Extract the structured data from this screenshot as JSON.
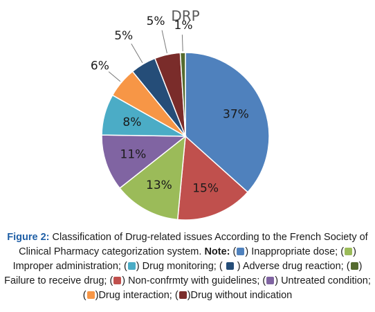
{
  "chart_data": {
    "type": "pie",
    "title": "DRP",
    "categories": [
      "Inappropriate dose",
      "Non-confrmty with guidelines",
      "Improper administration",
      "Untreated condition",
      "Drug monitoring",
      "Drug interaction",
      "Adverse drug reaction",
      "Drug without indication",
      "Failure to receive drug"
    ],
    "values": [
      37,
      15,
      13,
      11,
      8,
      6,
      5,
      5,
      1
    ],
    "labels": [
      "37%",
      "15%",
      "13%",
      "11%",
      "8%",
      "6%",
      "5%",
      "5%",
      "1%"
    ],
    "colors": [
      "#4f81bd",
      "#c0504d",
      "#9bbb59",
      "#8064a2",
      "#4bacc6",
      "#f79646",
      "#254d78",
      "#7a2c2a",
      "#556b2f"
    ]
  },
  "caption": {
    "figure_label": "Figure 2:",
    "text": " Classification of Drug-related issues According to the French Society of Clinical Pharmacy categorization system. ",
    "note_label": "Note:",
    "items": [
      {
        "pre": " (",
        "color": "#4f81bd",
        "post": ") Inappropriate dose; "
      },
      {
        "pre": "(",
        "color": "#9bbb59",
        "post": ") Improper administration; "
      },
      {
        "pre": "(",
        "color": "#4bacc6",
        "post": ") Drug monitoring; "
      },
      {
        "pre": "( ",
        "color": "#254d78",
        "post": " ) Adverse drug reaction; "
      },
      {
        "pre": "(",
        "color": "#556b2f",
        "post": ") Failure to receive drug; "
      },
      {
        "pre": "(",
        "color": "#c0504d",
        "post": ") Non-confrmty with guidelines; "
      },
      {
        "pre": "(",
        "color": "#8064a2",
        "post": ") Untreated condition; "
      },
      {
        "pre": "(",
        "color": "#f79646",
        "post": ")Drug interaction; "
      },
      {
        "pre": "(",
        "color": "#7a2c2a",
        "post": ")Drug without indication"
      }
    ]
  }
}
